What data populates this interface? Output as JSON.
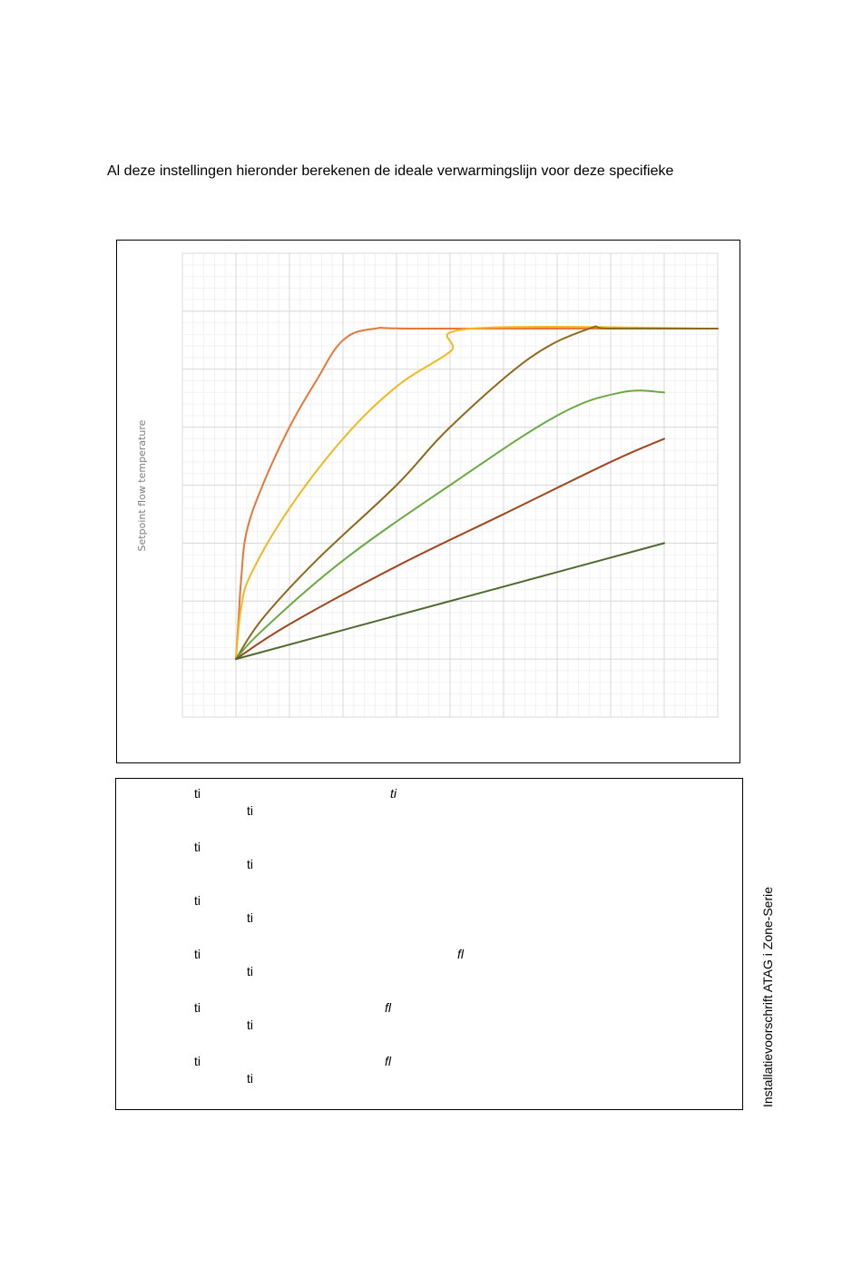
{
  "intro_text": "Al deze instellingen hieronder berekenen de ideale verwarmingslijn voor deze specifieke",
  "chart_data": {
    "type": "line",
    "title": "",
    "xlabel": "",
    "ylabel": "Setpoint flow temperature",
    "x": [
      1,
      10
    ],
    "xlim": [
      0,
      10
    ],
    "ylim": [
      0,
      8
    ],
    "grid": true,
    "series": [
      {
        "color": "#e8763a",
        "points": [
          [
            1,
            1
          ],
          [
            1.05,
            1.7
          ],
          [
            1.1,
            2.4
          ],
          [
            1.2,
            3.2
          ],
          [
            1.5,
            4.0
          ],
          [
            2,
            5.0
          ],
          [
            2.5,
            5.8
          ],
          [
            3,
            6.5
          ],
          [
            3.6,
            6.7
          ],
          [
            4.5,
            6.7
          ],
          [
            10,
            6.7
          ]
        ]
      },
      {
        "color": "#f2b820",
        "points": [
          [
            1,
            1
          ],
          [
            1.1,
            1.9
          ],
          [
            1.3,
            2.5
          ],
          [
            2,
            3.6
          ],
          [
            3,
            4.8
          ],
          [
            4,
            5.7
          ],
          [
            5,
            6.3
          ],
          [
            5.4,
            6.7
          ],
          [
            10,
            6.7
          ]
        ]
      },
      {
        "color": "#8f6a1e",
        "points": [
          [
            1,
            1
          ],
          [
            1.5,
            1.7
          ],
          [
            2.5,
            2.7
          ],
          [
            4,
            4.0
          ],
          [
            5,
            5.0
          ],
          [
            6.5,
            6.2
          ],
          [
            7.6,
            6.7
          ],
          [
            8,
            6.7
          ],
          [
            10,
            6.7
          ]
        ]
      },
      {
        "color": "#6aaa42",
        "points": [
          [
            1,
            1
          ],
          [
            1.5,
            1.5
          ],
          [
            3,
            2.7
          ],
          [
            5,
            4.0
          ],
          [
            7,
            5.2
          ],
          [
            8.2,
            5.6
          ],
          [
            9,
            5.6
          ]
        ]
      },
      {
        "color": "#a0461e",
        "points": [
          [
            1,
            1
          ],
          [
            2,
            1.6
          ],
          [
            4,
            2.6
          ],
          [
            6,
            3.5
          ],
          [
            8,
            4.4
          ],
          [
            9,
            4.8
          ]
        ]
      },
      {
        "color": "#4e6a2e",
        "points": [
          [
            1,
            1
          ],
          [
            3,
            1.5
          ],
          [
            5,
            2.0
          ],
          [
            7,
            2.5
          ],
          [
            9,
            3.0
          ]
        ]
      }
    ]
  },
  "legend_items": [
    {
      "ligature1": "ti",
      "ligature2": "ti",
      "mid": "ti"
    },
    {
      "ligature1": "ti",
      "ligature2": "ti"
    },
    {
      "ligature1": "ti",
      "ligature2": "ti"
    },
    {
      "ligature1": "ti",
      "ligature2": "ti",
      "mid": "fl"
    },
    {
      "ligature1": "ti",
      "ligature2": "ti",
      "mid": "fl"
    },
    {
      "ligature1": "ti",
      "ligature2": "ti",
      "mid": "fl"
    }
  ],
  "side_caption": "Installatievoorschrift   ATAG i Zone-Serie"
}
